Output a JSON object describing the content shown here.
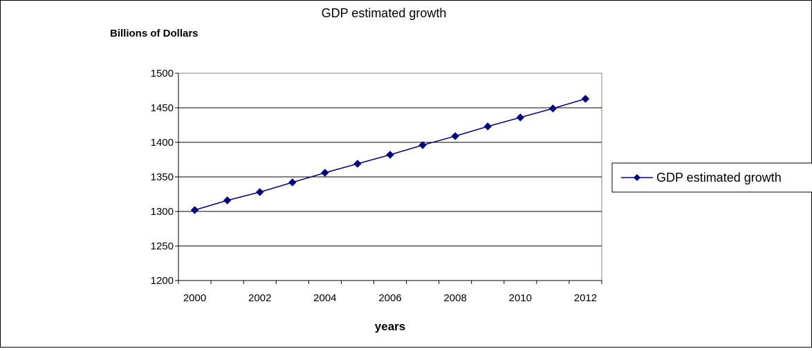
{
  "chart_data": {
    "type": "line",
    "title": "GDP estimated growth",
    "ylabel": "Billions of Dollars",
    "xlabel": "years",
    "x": [
      2000,
      2001,
      2002,
      2003,
      2004,
      2005,
      2006,
      2007,
      2008,
      2009,
      2010,
      2011,
      2012
    ],
    "x_tick_labels": [
      "2000",
      "2002",
      "2004",
      "2006",
      "2008",
      "2010",
      "2012"
    ],
    "y_ticks": [
      1200,
      1250,
      1300,
      1350,
      1400,
      1450,
      1500
    ],
    "ylim": [
      1200,
      1500
    ],
    "grid": "horizontal",
    "legend_position": "right",
    "series": [
      {
        "name": "GDP estimated growth",
        "color": "#000080",
        "marker": "diamond",
        "values": [
          1302,
          1316,
          1328,
          1342,
          1356,
          1369,
          1382,
          1396,
          1409,
          1423,
          1436,
          1449,
          1463
        ]
      }
    ]
  }
}
